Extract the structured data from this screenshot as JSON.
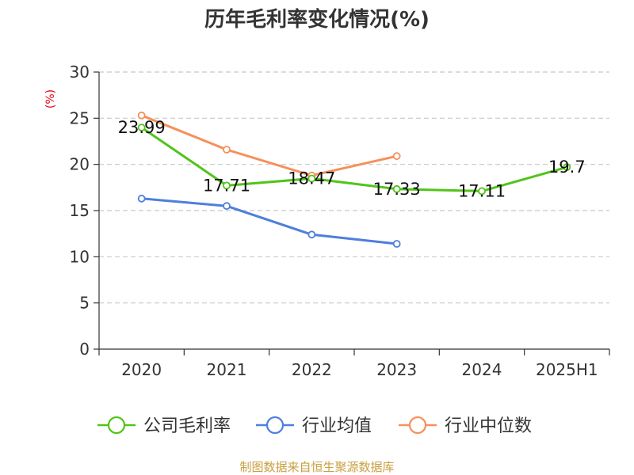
{
  "chart_data": {
    "type": "line",
    "title": "历年毛利率变化情况(%)",
    "y_unit": "(%)",
    "categories": [
      "2020",
      "2021",
      "2022",
      "2023",
      "2024",
      "2025H1"
    ],
    "ylim": [
      0,
      30
    ],
    "yticks": [
      0,
      5,
      10,
      15,
      20,
      25,
      30
    ],
    "grid": true,
    "legend_position": "bottom",
    "series": [
      {
        "name": "公司毛利率",
        "color": "#52c41a",
        "values": [
          23.99,
          17.71,
          18.47,
          17.33,
          17.11,
          19.7
        ],
        "labels": [
          "23.99",
          "17.71",
          "18.47",
          "17.33",
          "17.11",
          "19.7"
        ]
      },
      {
        "name": "行业均值",
        "color": "#4e7fdc",
        "values": [
          16.3,
          15.5,
          12.4,
          11.4,
          null,
          null
        ]
      },
      {
        "name": "行业中位数",
        "color": "#f5905a",
        "values": [
          25.3,
          21.6,
          18.8,
          20.9,
          null,
          null
        ]
      }
    ]
  },
  "source": "制图数据来自恒生聚源数据库"
}
